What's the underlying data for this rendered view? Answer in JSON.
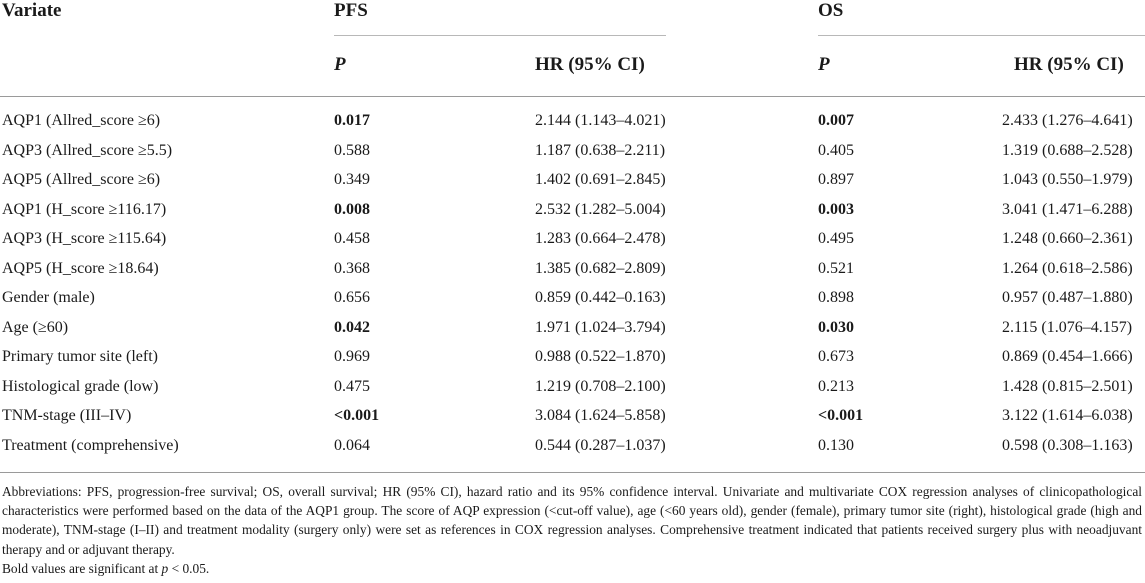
{
  "table": {
    "header": {
      "variate": "Variate",
      "groups": [
        {
          "label": "PFS",
          "p": "P",
          "hr": "HR (95% CI)"
        },
        {
          "label": "OS",
          "p": "P",
          "hr": "HR (95% CI)"
        }
      ]
    },
    "rows": [
      {
        "name": "AQP1 (Allred_score ≥6)",
        "pfs_p": "0.017",
        "pfs_p_bold": true,
        "pfs_hr": "2.144 (1.143–4.021)",
        "os_p": "0.007",
        "os_p_bold": true,
        "os_hr": "2.433 (1.276–4.641)"
      },
      {
        "name": "AQP3 (Allred_score ≥5.5)",
        "pfs_p": "0.588",
        "pfs_p_bold": false,
        "pfs_hr": "1.187 (0.638–2.211)",
        "os_p": "0.405",
        "os_p_bold": false,
        "os_hr": "1.319 (0.688–2.528)"
      },
      {
        "name": "AQP5 (Allred_score ≥6)",
        "pfs_p": "0.349",
        "pfs_p_bold": false,
        "pfs_hr": "1.402 (0.691–2.845)",
        "os_p": "0.897",
        "os_p_bold": false,
        "os_hr": "1.043 (0.550–1.979)"
      },
      {
        "name": "AQP1 (H_score ≥116.17)",
        "pfs_p": "0.008",
        "pfs_p_bold": true,
        "pfs_hr": "2.532 (1.282–5.004)",
        "os_p": "0.003",
        "os_p_bold": true,
        "os_hr": "3.041 (1.471–6.288)"
      },
      {
        "name": "AQP3 (H_score ≥115.64)",
        "pfs_p": "0.458",
        "pfs_p_bold": false,
        "pfs_hr": "1.283 (0.664–2.478)",
        "os_p": "0.495",
        "os_p_bold": false,
        "os_hr": "1.248 (0.660–2.361)"
      },
      {
        "name": "AQP5 (H_score ≥18.64)",
        "pfs_p": "0.368",
        "pfs_p_bold": false,
        "pfs_hr": "1.385 (0.682–2.809)",
        "os_p": "0.521",
        "os_p_bold": false,
        "os_hr": "1.264 (0.618–2.586)"
      },
      {
        "name": "Gender (male)",
        "pfs_p": "0.656",
        "pfs_p_bold": false,
        "pfs_hr": "0.859 (0.442–0.163)",
        "os_p": "0.898",
        "os_p_bold": false,
        "os_hr": "0.957 (0.487–1.880)"
      },
      {
        "name": "Age (≥60)",
        "pfs_p": "0.042",
        "pfs_p_bold": true,
        "pfs_hr": "1.971 (1.024–3.794)",
        "os_p": "0.030",
        "os_p_bold": true,
        "os_hr": "2.115 (1.076–4.157)"
      },
      {
        "name": "Primary tumor site (left)",
        "pfs_p": "0.969",
        "pfs_p_bold": false,
        "pfs_hr": "0.988 (0.522–1.870)",
        "os_p": "0.673",
        "os_p_bold": false,
        "os_hr": "0.869 (0.454–1.666)"
      },
      {
        "name": "Histological grade (low)",
        "pfs_p": "0.475",
        "pfs_p_bold": false,
        "pfs_hr": "1.219 (0.708–2.100)",
        "os_p": "0.213",
        "os_p_bold": false,
        "os_hr": "1.428 (0.815–2.501)"
      },
      {
        "name": "TNM-stage (III–IV)",
        "pfs_p": "<0.001",
        "pfs_p_bold": true,
        "pfs_hr": "3.084 (1.624–5.858)",
        "os_p": "<0.001",
        "os_p_bold": true,
        "os_hr": "3.122 (1.614–6.038)"
      },
      {
        "name": "Treatment (comprehensive)",
        "pfs_p": "0.064",
        "pfs_p_bold": false,
        "pfs_hr": "0.544 (0.287–1.037)",
        "os_p": "0.130",
        "os_p_bold": false,
        "os_hr": "0.598 (0.308–1.163)"
      }
    ]
  },
  "footnote": {
    "abbreviations": "Abbreviations: PFS, progression-free survival; OS, overall survival; HR (95% CI), hazard ratio and its 95% confidence interval. Univariate and multivariate COX regression analyses of clinicopathological characteristics were performed based on the data of the AQP1 group. The score of AQP expression (<cut-off value), age (<60 years old), gender (female), primary tumor site (right), histological grade (high and moderate), TNM-stage (I–II) and treatment modality (surgery only) were set as references in COX regression analyses. Comprehensive treatment indicated that patients received surgery plus with neoadjuvant therapy and or adjuvant therapy.",
    "significance": "Bold values are significant at p < 0.05."
  }
}
